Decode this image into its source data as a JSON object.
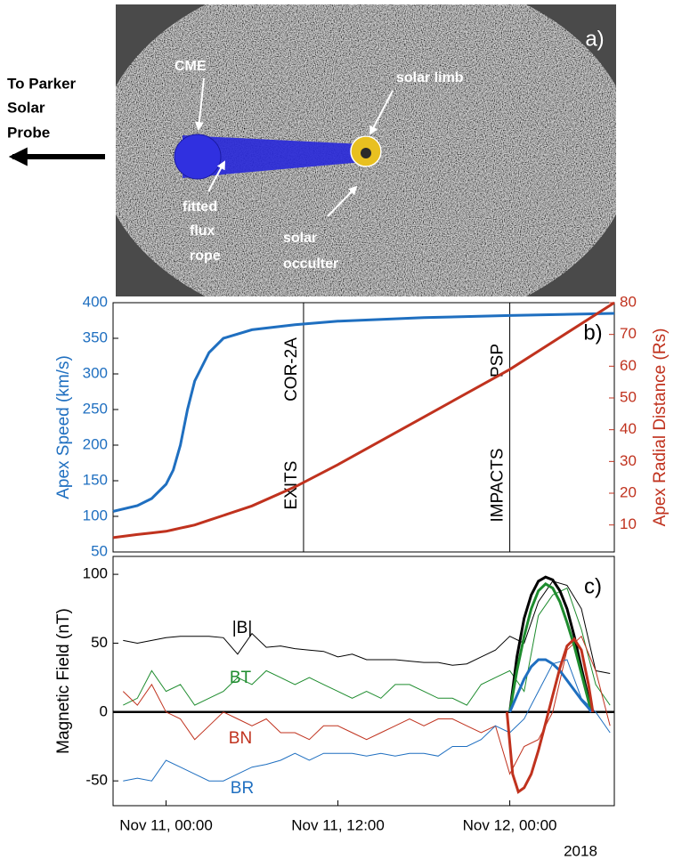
{
  "panel_a": {
    "label": "a)",
    "cme": "CME",
    "solar_limb": "solar limb",
    "fitted_flux_rope": [
      "fitted",
      "flux",
      "rope"
    ],
    "solar_occulter": [
      "solar",
      "occulter"
    ],
    "direction": [
      "To Parker",
      "Solar",
      "Probe"
    ]
  },
  "chart_data": [
    {
      "type": "line",
      "panel_label": "b)",
      "y_label": "Apex Speed (km/s)",
      "y2_label": "Apex Radial Distance (Rs)",
      "xlim": [
        -3.7,
        31.3
      ],
      "ylim": [
        50,
        400
      ],
      "yticks": [
        50,
        100,
        150,
        200,
        250,
        300,
        350,
        400
      ],
      "y2lim": [
        1.5,
        80
      ],
      "y2ticks": [
        10,
        20,
        30,
        40,
        50,
        60,
        70,
        80
      ],
      "x": [
        -3.7,
        -2,
        -1,
        0,
        0.5,
        1,
        1.5,
        2,
        3,
        4,
        6,
        9,
        12,
        18,
        24,
        31.3
      ],
      "series": [
        {
          "color": "#1f6fc0",
          "values": [
            107,
            115,
            125,
            145,
            165,
            200,
            250,
            290,
            330,
            350,
            362,
            369,
            374,
            379,
            382,
            385
          ]
        },
        {
          "color": "#c0321e",
          "axis": "y2",
          "values": [
            6,
            7,
            7.5,
            8,
            8.5,
            9,
            9.5,
            10,
            11.5,
            13,
            16,
            22,
            29,
            44,
            59,
            80
          ]
        }
      ],
      "vlines": [
        {
          "x": 9.6,
          "labels": [
            "EXITS",
            "COR-2A"
          ]
        },
        {
          "x": 24,
          "labels": [
            "IMPACTS",
            "PSP"
          ]
        }
      ]
    },
    {
      "type": "line",
      "panel_label": "c)",
      "y_label": "Magnetic Field (nT)",
      "year": "2018",
      "xlim": [
        -3.7,
        31.3
      ],
      "ylim": [
        -68,
        113
      ],
      "yticks": [
        -50,
        0,
        50,
        100
      ],
      "xticks": [
        {
          "value": 0,
          "label": "Nov 11, 00:00"
        },
        {
          "value": 12,
          "label": "Nov 11, 12:00"
        },
        {
          "value": 24,
          "label": "Nov 12, 00:00"
        }
      ],
      "hline": 0,
      "x": [
        -3,
        -2,
        -1,
        0,
        1,
        2,
        3,
        4,
        5,
        6,
        7,
        8,
        9,
        10,
        11,
        12,
        13,
        14,
        15,
        16,
        17,
        18,
        19,
        20,
        21,
        22,
        23,
        24,
        25,
        26,
        27,
        28,
        29,
        30,
        31
      ],
      "series": [
        {
          "name": "|B|",
          "color": "#000000",
          "values": [
            52,
            50,
            52,
            54,
            55,
            55,
            55,
            54,
            42,
            57,
            47,
            48,
            46,
            45,
            44,
            40,
            42,
            38,
            38,
            38,
            37,
            36,
            36,
            34,
            35,
            40,
            45,
            55,
            50,
            80,
            95,
            92,
            75,
            30,
            28
          ]
        },
        {
          "name": "BT",
          "color": "#1e8c2e",
          "values": [
            5,
            10,
            30,
            15,
            20,
            5,
            10,
            15,
            25,
            20,
            30,
            25,
            20,
            25,
            20,
            15,
            10,
            15,
            10,
            20,
            20,
            15,
            10,
            10,
            5,
            20,
            25,
            30,
            15,
            70,
            85,
            90,
            60,
            20,
            5
          ]
        },
        {
          "name": "BN",
          "color": "#c0321e",
          "values": [
            15,
            5,
            20,
            0,
            -5,
            -20,
            -10,
            0,
            -5,
            -10,
            -5,
            -15,
            -15,
            -20,
            -10,
            -10,
            -15,
            -20,
            -15,
            -10,
            -5,
            -10,
            -5,
            -5,
            -10,
            -15,
            -10,
            -45,
            -25,
            -20,
            0,
            45,
            55,
            30,
            -10
          ]
        },
        {
          "name": "BR",
          "color": "#1f6fc0",
          "values": [
            -50,
            -48,
            -50,
            -35,
            -40,
            -45,
            -50,
            -50,
            -45,
            -40,
            -38,
            -35,
            -30,
            -35,
            -30,
            -30,
            -30,
            -32,
            -30,
            -32,
            -30,
            -30,
            -32,
            -25,
            -25,
            -20,
            -10,
            -15,
            -5,
            15,
            35,
            38,
            10,
            0,
            -15
          ]
        }
      ],
      "fits": [
        {
          "color": "#000000",
          "x": [
            24,
            24.5,
            25,
            25.5,
            26,
            26.5,
            27,
            27.5,
            28,
            28.5,
            29,
            29.5,
            29.7
          ],
          "values": [
            0,
            40,
            68,
            85,
            95,
            98,
            96,
            88,
            75,
            55,
            32,
            10,
            0
          ]
        },
        {
          "color": "#1e8c2e",
          "x": [
            24,
            24.5,
            25,
            25.5,
            26,
            26.5,
            27,
            27.5,
            28,
            28.5,
            29,
            29.5,
            29.7
          ],
          "values": [
            0,
            30,
            55,
            75,
            88,
            93,
            90,
            80,
            65,
            48,
            28,
            8,
            0
          ]
        },
        {
          "color": "#1f6fc0",
          "x": [
            24,
            24.5,
            25,
            25.5,
            26,
            26.5,
            27,
            27.5,
            28,
            28.5,
            29,
            29.5,
            29.7
          ],
          "values": [
            0,
            12,
            24,
            33,
            38,
            38,
            35,
            30,
            23,
            16,
            9,
            3,
            0
          ]
        },
        {
          "color": "#c0321e",
          "x": [
            23.8,
            24.2,
            24.6,
            25,
            25.5,
            26,
            26.5,
            27,
            27.5,
            28,
            28.5,
            29,
            29.5,
            29.8
          ],
          "values": [
            0,
            -45,
            -58,
            -55,
            -45,
            -28,
            -8,
            12,
            32,
            48,
            53,
            45,
            20,
            0
          ]
        }
      ]
    }
  ]
}
